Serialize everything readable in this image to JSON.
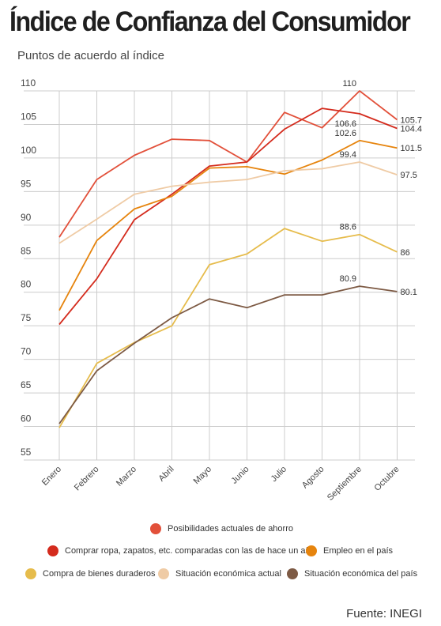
{
  "title": "Índice de Confianza del Consumidor",
  "subtitle": "Puntos de acuerdo al índice",
  "source": "Fuente: INEGI",
  "colors": {
    "grid": "#cccccc",
    "axis_text": "#444444"
  },
  "chart_data": {
    "type": "line",
    "categories": [
      "Enero",
      "Febrero",
      "Marzo",
      "Abril",
      "Mayo",
      "Junio",
      "Julio",
      "Agosto",
      "Septiembre",
      "Octubre"
    ],
    "ylim": [
      55,
      110
    ],
    "yticks": [
      55,
      60,
      65,
      70,
      75,
      80,
      85,
      90,
      95,
      100,
      105,
      110
    ],
    "grid": true,
    "legend_position": "bottom",
    "series": [
      {
        "name": "Posibilidades actuales de ahorro",
        "color": "#e2503a",
        "values": [
          88.2,
          96.8,
          100.4,
          102.8,
          102.6,
          99.4,
          106.8,
          104.5,
          110,
          105.7
        ],
        "labels": [
          {
            "index": 8,
            "text": "110",
            "pos": "above-left"
          },
          {
            "index": 9,
            "text": "105.7",
            "pos": "right"
          }
        ]
      },
      {
        "name": "Comprar ropa, zapatos, etc. comparadas con las de hace un año",
        "color": "#d42b1d",
        "values": [
          75.2,
          82.0,
          90.8,
          94.6,
          98.8,
          99.4,
          104.3,
          107.4,
          106.6,
          104.4
        ],
        "labels": [
          {
            "index": 8,
            "text": "106.6",
            "pos": "below-left"
          },
          {
            "index": 9,
            "text": "104.4",
            "pos": "right"
          }
        ]
      },
      {
        "name": "Empleo en el país",
        "color": "#e6840d",
        "values": [
          77.3,
          87.7,
          92.4,
          94.3,
          98.5,
          98.7,
          97.6,
          99.7,
          102.6,
          101.5
        ],
        "labels": [
          {
            "index": 8,
            "text": "102.6",
            "pos": "above-left"
          },
          {
            "index": 9,
            "text": "101.5",
            "pos": "right"
          }
        ]
      },
      {
        "name": "Compra de bienes duraderos",
        "color": "#e6bc4c",
        "values": [
          59.8,
          69.4,
          72.5,
          75.0,
          84.1,
          85.7,
          89.5,
          87.6,
          88.6,
          86
        ],
        "labels": [
          {
            "index": 8,
            "text": "88.6",
            "pos": "above-left"
          },
          {
            "index": 9,
            "text": "86",
            "pos": "right"
          }
        ]
      },
      {
        "name": "Situación económica actual",
        "color": "#efcba5",
        "values": [
          87.3,
          90.9,
          94.6,
          95.8,
          96.4,
          96.8,
          98.1,
          98.4,
          99.4,
          97.5
        ],
        "labels": [
          {
            "index": 8,
            "text": "99.4",
            "pos": "above-left"
          },
          {
            "index": 9,
            "text": "97.5",
            "pos": "right"
          }
        ]
      },
      {
        "name": "Situación económica del país",
        "color": "#7d5a44",
        "values": [
          60.4,
          68.3,
          72.4,
          76.2,
          79.0,
          77.7,
          79.6,
          79.6,
          80.9,
          80.1
        ],
        "labels": [
          {
            "index": 8,
            "text": "80.9",
            "pos": "above-left"
          },
          {
            "index": 9,
            "text": "80.1",
            "pos": "right"
          }
        ]
      }
    ]
  }
}
